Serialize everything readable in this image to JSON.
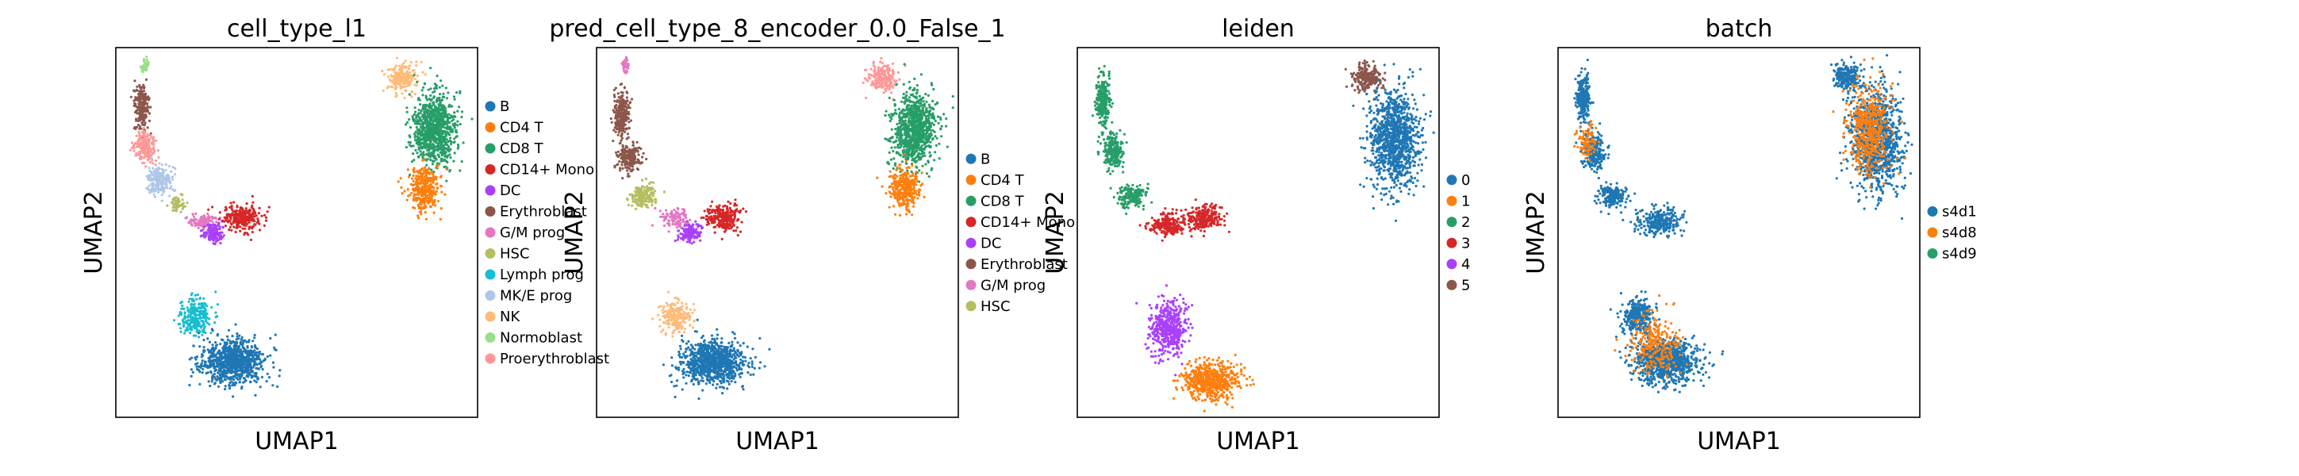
{
  "chart_data": [
    {
      "type": "scatter",
      "title": "cell_type_l1",
      "xlabel": "UMAP1",
      "ylabel": "UMAP2",
      "grid": false,
      "legend_placement": "right",
      "legend": [
        {
          "label": "B",
          "color": "#1f77b4"
        },
        {
          "label": "CD4 T",
          "color": "#ff7f0e"
        },
        {
          "label": "CD8 T",
          "color": "#279e68"
        },
        {
          "label": "CD14+ Mono",
          "color": "#d62728"
        },
        {
          "label": "DC",
          "color": "#aa40fc"
        },
        {
          "label": "Erythroblast",
          "color": "#8c564b"
        },
        {
          "label": "G/M prog",
          "color": "#e377c2"
        },
        {
          "label": "HSC",
          "color": "#b5bd61"
        },
        {
          "label": "Lymph prog",
          "color": "#17becf"
        },
        {
          "label": "MK/E prog",
          "color": "#aec7e8"
        },
        {
          "label": "NK",
          "color": "#ffbb78"
        },
        {
          "label": "Normoblast",
          "color": "#98df8a"
        },
        {
          "label": "Proerythroblast",
          "color": "#ff9896"
        }
      ]
    },
    {
      "type": "scatter",
      "title": "pred_cell_type_8_encoder_0.0_False_1",
      "xlabel": "UMAP1",
      "ylabel": "UMAP2",
      "grid": false,
      "legend_placement": "right",
      "legend": [
        {
          "label": "B",
          "color": "#1f77b4"
        },
        {
          "label": "CD4 T",
          "color": "#ff7f0e"
        },
        {
          "label": "CD8 T",
          "color": "#279e68"
        },
        {
          "label": "CD14+ Mono",
          "color": "#d62728"
        },
        {
          "label": "DC",
          "color": "#aa40fc"
        },
        {
          "label": "Erythroblast",
          "color": "#8c564b"
        },
        {
          "label": "G/M prog",
          "color": "#e377c2"
        },
        {
          "label": "HSC",
          "color": "#b5bd61"
        }
      ]
    },
    {
      "type": "scatter",
      "title": "leiden",
      "xlabel": "UMAP1",
      "ylabel": "UMAP2",
      "grid": false,
      "legend_placement": "right",
      "legend": [
        {
          "label": "0",
          "color": "#1f77b4"
        },
        {
          "label": "1",
          "color": "#ff7f0e"
        },
        {
          "label": "2",
          "color": "#279e68"
        },
        {
          "label": "3",
          "color": "#d62728"
        },
        {
          "label": "4",
          "color": "#aa40fc"
        },
        {
          "label": "5",
          "color": "#8c564b"
        }
      ]
    },
    {
      "type": "scatter",
      "title": "batch",
      "xlabel": "UMAP1",
      "ylabel": "UMAP2",
      "grid": false,
      "legend_placement": "right",
      "legend": [
        {
          "label": "s4d1",
          "color": "#1f77b4"
        },
        {
          "label": "s4d8",
          "color": "#ff7f0e"
        },
        {
          "label": "s4d9",
          "color": "#279e68"
        }
      ]
    }
  ]
}
